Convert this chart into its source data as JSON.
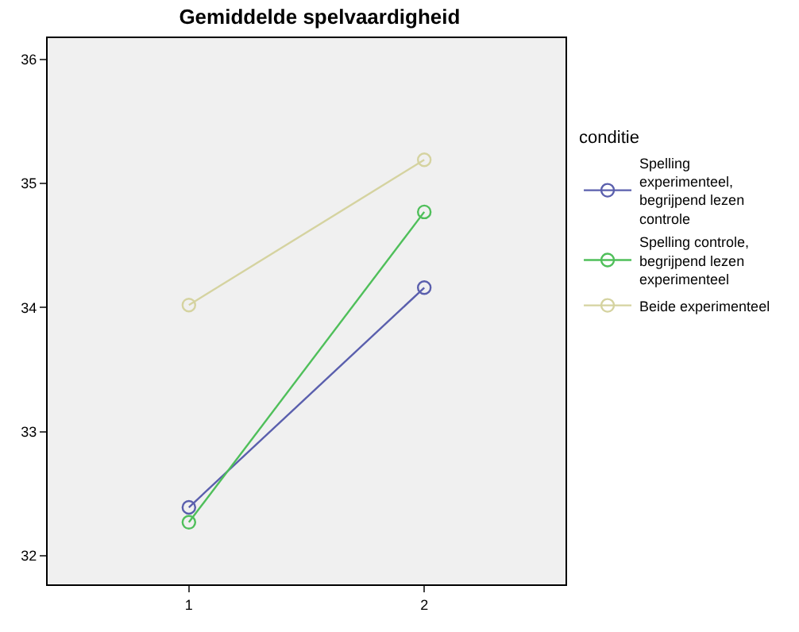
{
  "chart_data": {
    "type": "line",
    "title": "Gemiddelde spelvaardigheid",
    "legend_title": "conditie",
    "categories": [
      "1",
      "2"
    ],
    "series": [
      {
        "name": "Spelling experimenteel, begrijpend lezen controle",
        "color": "#5a5fad",
        "values": [
          32.39,
          34.16
        ]
      },
      {
        "name": "Spelling controle, begrijpend lezen experimenteel",
        "color": "#4fbf5a",
        "values": [
          32.27,
          34.77
        ]
      },
      {
        "name": "Beide experimenteel",
        "color": "#d5d3a0",
        "values": [
          34.02,
          35.19
        ]
      }
    ],
    "ylim": [
      31.77,
      36.17
    ],
    "yticks": [
      32,
      33,
      34,
      35,
      36
    ],
    "grid": false,
    "legend": "right",
    "marker": "circle",
    "line_style": "solid"
  }
}
